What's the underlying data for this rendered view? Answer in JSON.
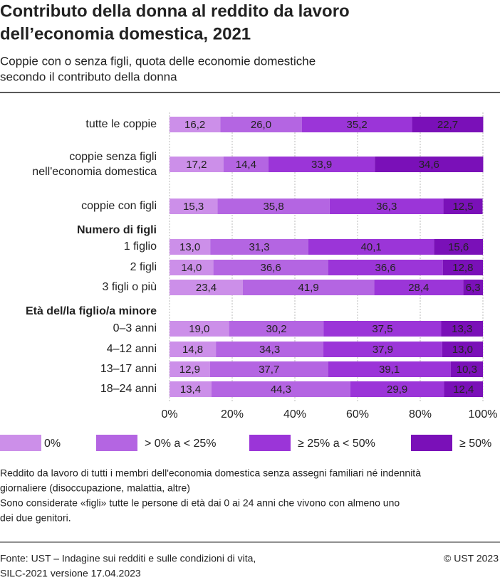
{
  "chart_data": {
    "type": "stacked-bar-horizontal",
    "title": [
      "Contributo della donna al reddito da lavoro",
      "dell’economia domestica, 2021"
    ],
    "subtitle": [
      "Coppie con o senza figli, quota delle economie domestiche",
      "secondo il contributo della donna"
    ],
    "categories": [
      "tutte le coppie",
      "coppie senza figli\nnell'economia domestica",
      "coppie con figli",
      "Numero di figli",
      "1 figlio",
      "2 figli",
      "3 figli o più",
      "Età del/la figlio/a minore",
      "0–3 anni",
      "4–12 anni",
      "13–17 anni",
      "18–24 anni"
    ],
    "series": [
      {
        "name": "0%",
        "color": "#cc8fe9",
        "values": [
          16.2,
          17.2,
          15.3,
          null,
          13.0,
          14.0,
          23.4,
          null,
          19.0,
          14.8,
          12.9,
          13.4
        ],
        "value_labels": [
          "16,2",
          "17,2",
          "15,3",
          null,
          "13,0",
          "14,0",
          "23,4",
          null,
          "19,0",
          "14,8",
          "12,9",
          "13,4"
        ]
      },
      {
        "name": "> 0% a < 25%",
        "color": "#b465e2",
        "values": [
          26.0,
          14.4,
          35.8,
          null,
          31.3,
          36.6,
          41.9,
          null,
          30.2,
          34.3,
          37.7,
          44.3
        ],
        "value_labels": [
          "26,0",
          "14,4",
          "35,8",
          null,
          "31,3",
          "36,6",
          "41,9",
          null,
          "30,2",
          "34,3",
          "37,7",
          "44,3"
        ]
      },
      {
        "name": "≥ 25% a < 50%",
        "color": "#9b35d8",
        "values": [
          35.2,
          33.9,
          36.3,
          null,
          40.1,
          36.6,
          28.4,
          null,
          37.5,
          37.9,
          39.1,
          29.9
        ],
        "value_labels": [
          "35,2",
          "33,9",
          "36,3",
          null,
          "40,1",
          "36,6",
          "28,4",
          null,
          "37,5",
          "37,9",
          "39,1",
          "29,9"
        ]
      },
      {
        "name": "≥ 50%",
        "color": "#7a10b8",
        "values": [
          22.7,
          34.6,
          12.5,
          null,
          15.6,
          12.8,
          6.3,
          null,
          13.3,
          13.0,
          10.3,
          12.4
        ],
        "value_labels": [
          "22,7",
          "34,6",
          "12,5",
          null,
          "15,6",
          "12,8",
          "6,3",
          null,
          "13,3",
          "13,0",
          "10,3",
          "12,4"
        ]
      }
    ],
    "xlim": [
      0,
      100
    ],
    "xticks": [
      {
        "value": 0,
        "label": "0%"
      },
      {
        "value": 20,
        "label": "20%"
      },
      {
        "value": 40,
        "label": "40%"
      },
      {
        "value": 60,
        "label": "60%"
      },
      {
        "value": 80,
        "label": "80%"
      },
      {
        "value": 100,
        "label": "100%"
      }
    ],
    "grid": true,
    "notes": [
      "Reddito da lavoro di tutti i membri dell'economia domestica senza assegni familiari né indennità",
      "giornaliere (disoccupazione, malattia, altre)",
      "Sono considerate «figli» tutte le persone di età dai 0 ai 24 anni che vivono con almeno uno",
      "dei due genitori."
    ],
    "source": [
      "Fonte: UST – Indagine sui redditi e sulle condizioni di vita,",
      "SILC-2021 versione 17.04.2023"
    ],
    "copyright": "© UST 2023"
  }
}
